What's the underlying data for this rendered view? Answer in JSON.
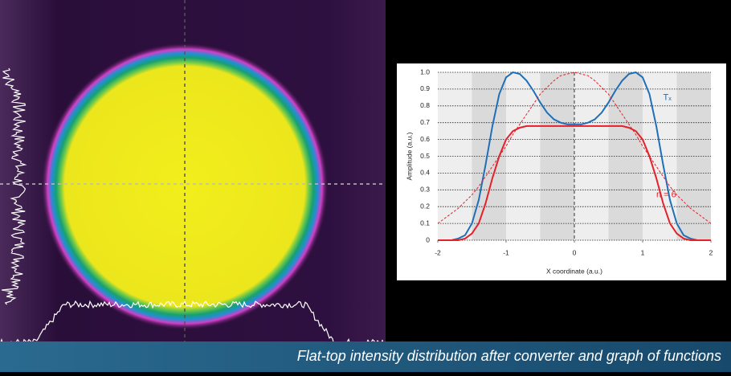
{
  "chart_data": {
    "type": "line",
    "x_label": "X coordinate (a.u.)",
    "y_label": "Amplitude (a.u.)",
    "x": [
      -2,
      -1.9,
      -1.8,
      -1.7,
      -1.6,
      -1.5,
      -1.4,
      -1.3,
      -1.2,
      -1.1,
      -1,
      -0.9,
      -0.8,
      -0.7,
      -0.6,
      -0.5,
      -0.4,
      -0.3,
      -0.2,
      -0.1,
      0,
      0.1,
      0.2,
      0.3,
      0.4,
      0.5,
      0.6,
      0.7,
      0.8,
      0.9,
      1,
      1.1,
      1.2,
      1.3,
      1.4,
      1.5,
      1.6,
      1.7,
      1.8,
      1.9,
      2
    ],
    "series": [
      {
        "name": "Tₓ",
        "color": "#1f6fb8",
        "dash": false,
        "values": [
          0,
          0,
          0,
          0.01,
          0.03,
          0.1,
          0.24,
          0.45,
          0.68,
          0.87,
          0.97,
          1,
          0.99,
          0.95,
          0.89,
          0.82,
          0.76,
          0.72,
          0.7,
          0.69,
          0.69,
          0.69,
          0.7,
          0.72,
          0.76,
          0.82,
          0.89,
          0.95,
          0.99,
          1,
          0.97,
          0.87,
          0.68,
          0.45,
          0.24,
          0.1,
          0.03,
          0.01,
          0,
          0,
          0
        ]
      },
      {
        "name": "n = 6",
        "color": "#e3212b",
        "dash": false,
        "values": [
          0,
          0,
          0,
          0,
          0.01,
          0.04,
          0.1,
          0.22,
          0.37,
          0.5,
          0.6,
          0.65,
          0.67,
          0.68,
          0.68,
          0.68,
          0.68,
          0.68,
          0.68,
          0.68,
          0.68,
          0.68,
          0.68,
          0.68,
          0.68,
          0.68,
          0.68,
          0.68,
          0.67,
          0.65,
          0.6,
          0.5,
          0.37,
          0.22,
          0.1,
          0.04,
          0.01,
          0,
          0,
          0,
          0
        ]
      },
      {
        "color": "#e3212b",
        "dash": true,
        "values": [
          0.1,
          0.13,
          0.16,
          0.19,
          0.23,
          0.27,
          0.32,
          0.38,
          0.44,
          0.5,
          0.56,
          0.63,
          0.69,
          0.75,
          0.81,
          0.87,
          0.91,
          0.95,
          0.98,
          0.99,
          1,
          0.99,
          0.98,
          0.95,
          0.91,
          0.87,
          0.81,
          0.75,
          0.69,
          0.63,
          0.56,
          0.5,
          0.44,
          0.38,
          0.32,
          0.27,
          0.23,
          0.19,
          0.16,
          0.13,
          0.1
        ]
      }
    ],
    "xlim": [
      -2,
      2
    ],
    "xticks": [
      -2,
      -1,
      0,
      1,
      2
    ],
    "ylim": [
      0,
      1
    ],
    "yticks": [
      0,
      0.1,
      0.2,
      0.3,
      0.4,
      0.5,
      0.6,
      0.7,
      0.8,
      0.9,
      {
        "value": 1,
        "label": "1.0"
      }
    ],
    "grid": true
  },
  "caption": "Flat-top intensity distribution after converter and graph of functions"
}
